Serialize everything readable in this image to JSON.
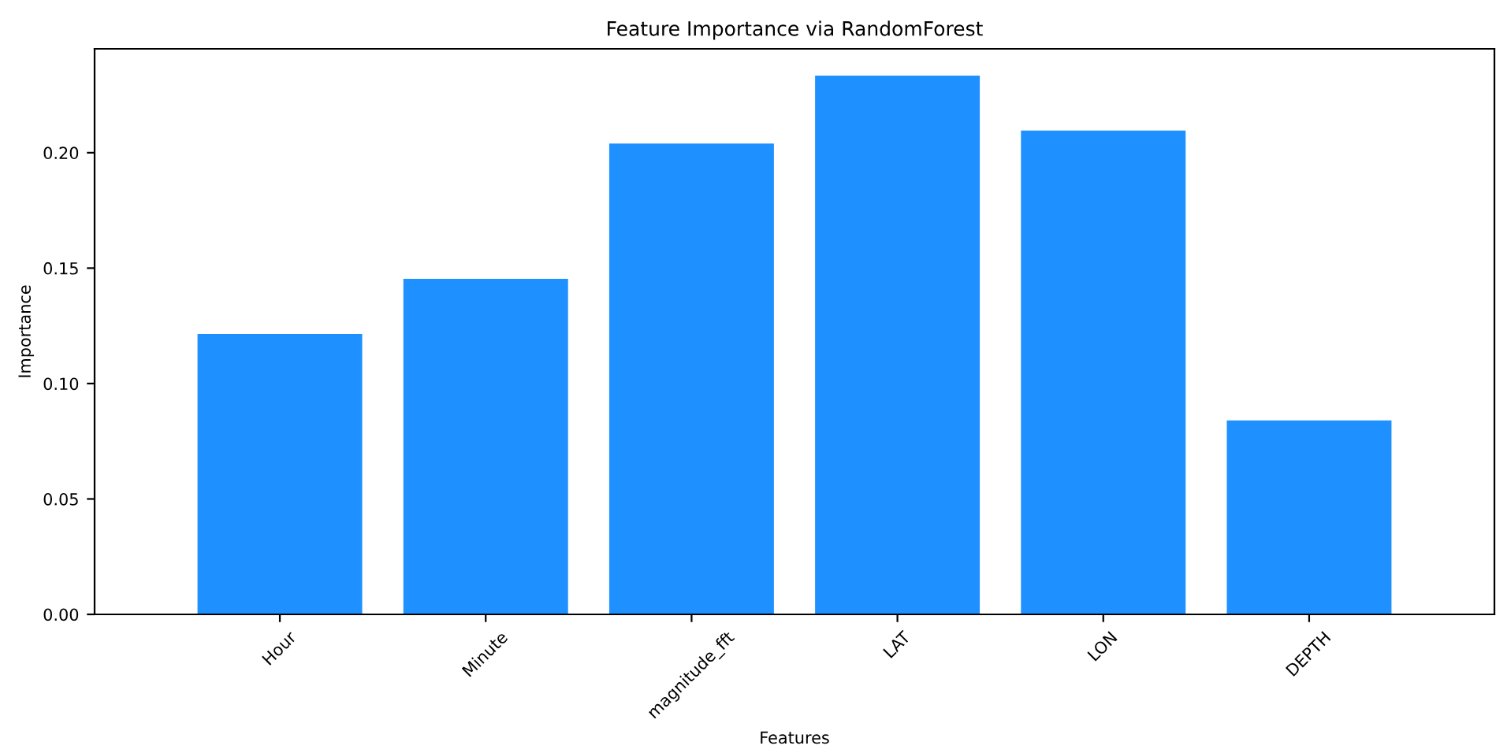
{
  "chart_data": {
    "type": "bar",
    "title": "Feature Importance via RandomForest",
    "xlabel": "Features",
    "ylabel": "Importance",
    "categories": [
      "Hour",
      "Minute",
      "magnitude_fft",
      "LAT",
      "LON",
      "DEPTH"
    ],
    "values": [
      0.1215,
      0.1454,
      0.204,
      0.2334,
      0.2096,
      0.084
    ],
    "color": "#1e90ff",
    "ylim": [
      0,
      0.245
    ],
    "yticks": [
      {
        "value": 0,
        "label": "0.00"
      },
      {
        "value": 0.05,
        "label": "0.05"
      },
      {
        "value": 0.1,
        "label": "0.10"
      },
      {
        "value": 0.15,
        "label": "0.15"
      },
      {
        "value": 0.2,
        "label": "0.20"
      }
    ],
    "grid": false
  }
}
